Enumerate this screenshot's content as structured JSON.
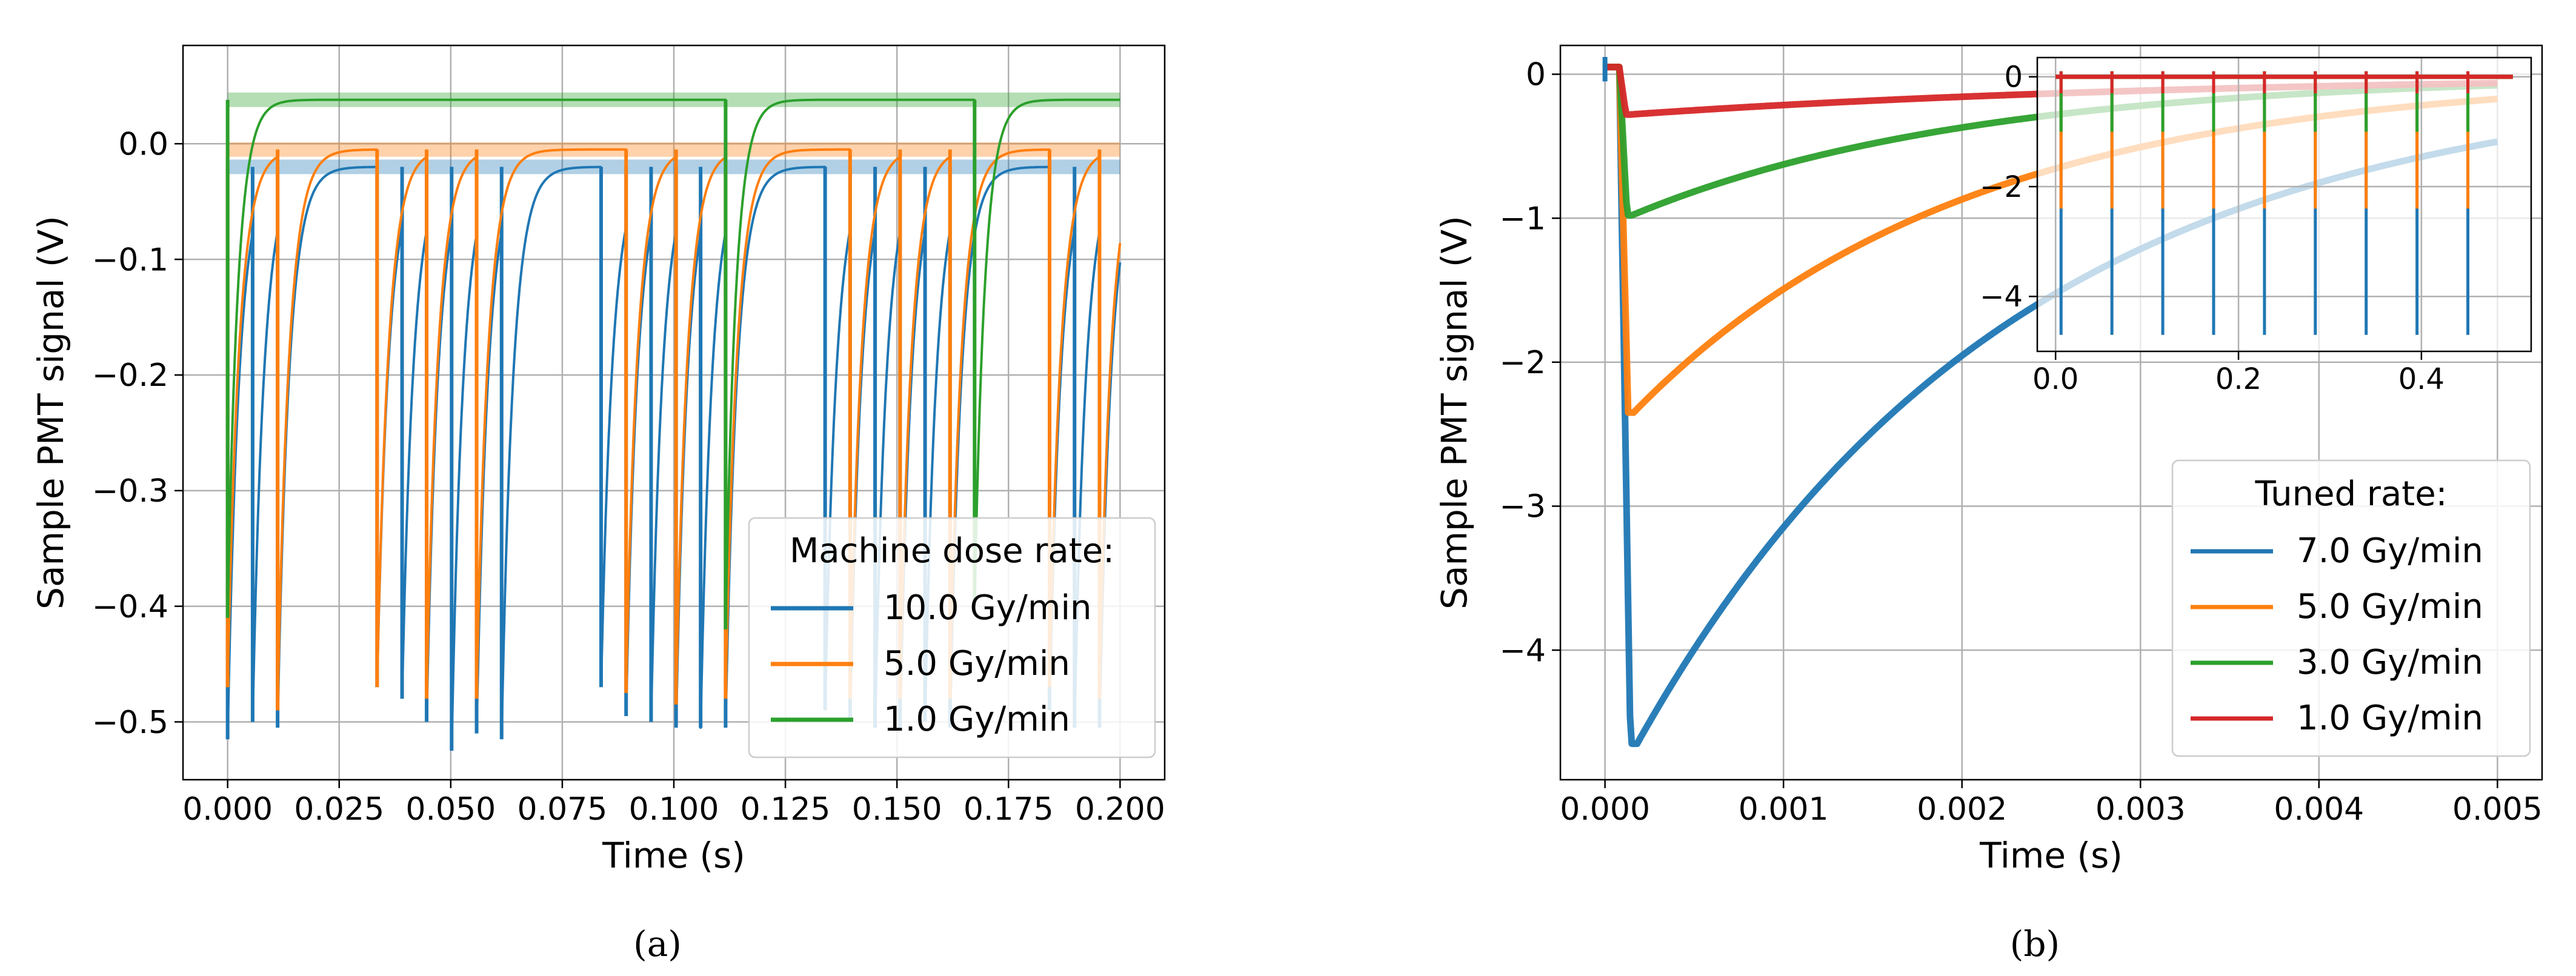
{
  "colors": {
    "blue": "#1f77b4",
    "orange": "#ff7f0e",
    "green": "#2ca02c",
    "red": "#d62728",
    "grid": "#b0b0b0",
    "axis": "#000000",
    "legend_edge": "#cccccc"
  },
  "chart_data": [
    {
      "type": "line",
      "caption": "(a)",
      "xlabel": "Time (s)",
      "ylabel": "Sample PMT signal (V)",
      "xlim": [
        -0.01,
        0.21
      ],
      "ylim": [
        -0.55,
        0.085
      ],
      "xticks": [
        0.0,
        0.025,
        0.05,
        0.075,
        0.1,
        0.125,
        0.15,
        0.175,
        0.2
      ],
      "xtick_labels": [
        "0.000",
        "0.025",
        "0.050",
        "0.075",
        "0.100",
        "0.125",
        "0.150",
        "0.175",
        "0.200"
      ],
      "yticks": [
        0.0,
        -0.1,
        -0.2,
        -0.3,
        -0.4,
        -0.5
      ],
      "ytick_labels": [
        "0.0",
        "−0.1",
        "−0.2",
        "−0.3",
        "−0.4",
        "−0.5"
      ],
      "grid": true,
      "legend": {
        "title": "Machine dose rate:",
        "location": "lower-right"
      },
      "series": [
        {
          "name": "10.0 Gy/min",
          "color": "blue",
          "baseline": -0.02,
          "tau": 0.0026,
          "pulse_times": [
            0.0,
            0.0056,
            0.0112,
            0.0335,
            0.0391,
            0.0446,
            0.0502,
            0.0558,
            0.0614,
            0.0837,
            0.0893,
            0.0949,
            0.1005,
            0.106,
            0.1116,
            0.1339,
            0.1395,
            0.1451,
            0.1507,
            0.1563,
            0.1619,
            0.1842,
            0.1898,
            0.1954
          ],
          "pulse_minima": [
            -0.515,
            -0.5,
            -0.505,
            -0.47,
            -0.48,
            -0.5,
            -0.525,
            -0.51,
            -0.515,
            -0.47,
            -0.495,
            -0.5,
            -0.505,
            -0.505,
            -0.505,
            -0.49,
            -0.5,
            -0.505,
            -0.505,
            -0.5,
            -0.505,
            -0.49,
            -0.505,
            -0.505
          ]
        },
        {
          "name": "5.0 Gy/min",
          "color": "orange",
          "baseline": -0.005,
          "tau": 0.0026,
          "pulse_times": [
            0.0,
            0.0112,
            0.0335,
            0.0446,
            0.0558,
            0.0893,
            0.1005,
            0.1116,
            0.1395,
            0.1507,
            0.1619,
            0.1842,
            0.1954
          ],
          "pulse_minima": [
            -0.47,
            -0.49,
            -0.47,
            -0.48,
            -0.48,
            -0.475,
            -0.485,
            -0.48,
            -0.48,
            -0.48,
            -0.48,
            -0.47,
            -0.48
          ]
        },
        {
          "name": "1.0 Gy/min",
          "color": "green",
          "baseline": 0.038,
          "tau": 0.0023,
          "pulse_times": [
            0.0,
            0.1116,
            0.1674
          ],
          "pulse_minima": [
            -0.41,
            -0.42,
            -0.4
          ]
        }
      ]
    },
    {
      "type": "line",
      "caption": "(b)",
      "xlabel": "Time (s)",
      "ylabel": "Sample PMT signal (V)",
      "xlim": [
        -0.00025,
        0.00525
      ],
      "ylim": [
        -4.9,
        0.2
      ],
      "xticks": [
        0.0,
        0.001,
        0.002,
        0.003,
        0.004,
        0.005
      ],
      "xtick_labels": [
        "0.000",
        "0.001",
        "0.002",
        "0.003",
        "0.004",
        "0.005"
      ],
      "yticks": [
        0,
        -1,
        -2,
        -3,
        -4
      ],
      "ytick_labels": [
        "0",
        "−1",
        "−2",
        "−3",
        "−4"
      ],
      "grid": true,
      "legend": {
        "title": "Tuned rate:",
        "location": "lower-right"
      },
      "series": [
        {
          "name": "7.0 Gy/min",
          "color": "blue",
          "peak_time": 0.00018,
          "min": -4.65,
          "tau": 0.0021
        },
        {
          "name": "5.0 Gy/min",
          "color": "orange",
          "peak_time": 0.00016,
          "min": -2.35,
          "tau": 0.00185
        },
        {
          "name": "3.0 Gy/min",
          "color": "green",
          "peak_time": 0.00015,
          "min": -0.98,
          "tau": 0.0019
        },
        {
          "name": "1.0 Gy/min",
          "color": "red",
          "peak_time": 0.00014,
          "min": -0.28,
          "tau": 0.0032
        }
      ],
      "inset": {
        "xlim": [
          -0.02,
          0.52
        ],
        "ylim": [
          -5.0,
          0.35
        ],
        "xticks": [
          0.0,
          0.2,
          0.4
        ],
        "xtick_labels": [
          "0.0",
          "0.2",
          "0.4"
        ],
        "yticks": [
          0,
          -2,
          -4
        ],
        "ytick_labels": [
          "0",
          "−2",
          "−4"
        ],
        "grid": true,
        "pulse_period": 0.0556,
        "pulse_count": 9,
        "pulse_minima": {
          "blue": -4.7,
          "orange": -2.4,
          "green": -1.0,
          "red": -0.3
        }
      }
    }
  ]
}
